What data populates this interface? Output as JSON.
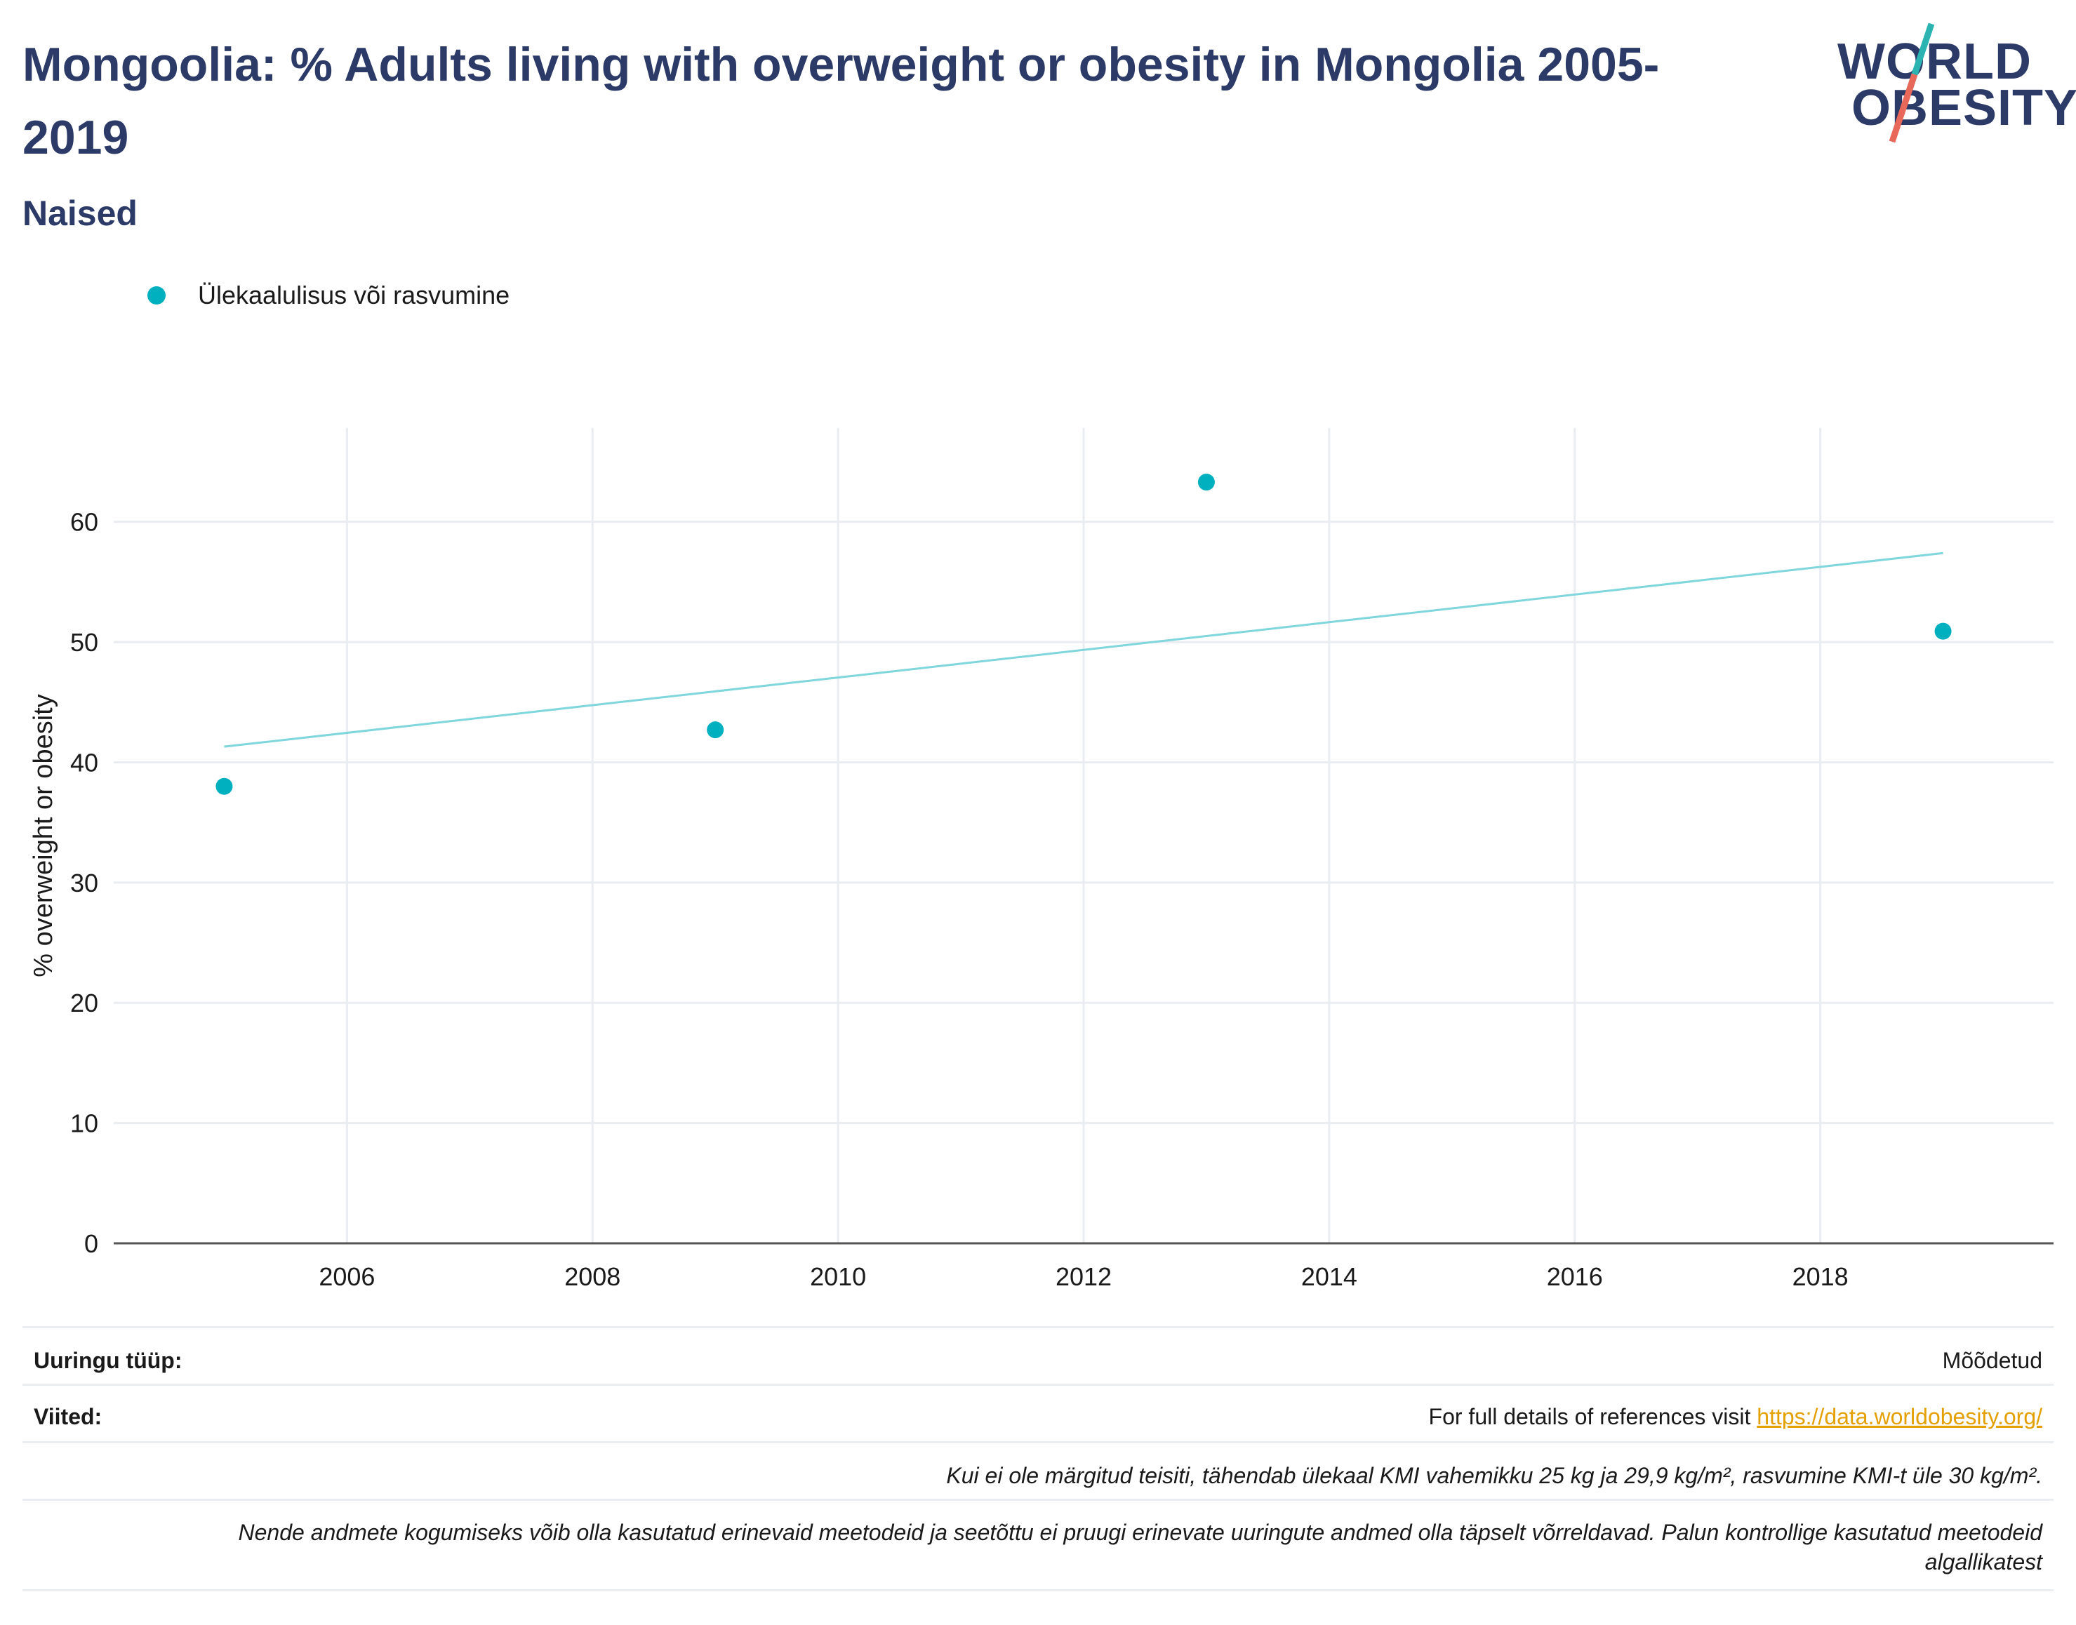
{
  "header": {
    "title": "Mongoolia: % Adults living with overweight or obesity in Mongolia 2005-2019",
    "subtitle": "Naised"
  },
  "logo": {
    "line1": "WORLD",
    "line2": "OBESITY",
    "accent_teal": "#2ab3b1",
    "accent_red": "#e8685a"
  },
  "legend": {
    "label": "Ülekaalulisus või rasvumine",
    "color": "#00b0be"
  },
  "chart_data": {
    "type": "scatter",
    "title": "",
    "xlabel": "",
    "ylabel": "% overweight or obesity",
    "xlim": [
      2004.1,
      2019.9
    ],
    "ylim": [
      0,
      67.8
    ],
    "xticks": [
      2006,
      2008,
      2010,
      2012,
      2014,
      2016,
      2018
    ],
    "yticks": [
      0,
      10,
      20,
      30,
      40,
      50,
      60
    ],
    "grid": true,
    "legend_position": "top-left",
    "series": [
      {
        "name": "Ülekaalulisus või rasvumine",
        "color": "#00b0be",
        "points": [
          {
            "x": 2005,
            "y": 38.0
          },
          {
            "x": 2009,
            "y": 42.7
          },
          {
            "x": 2013,
            "y": 63.3
          },
          {
            "x": 2019,
            "y": 50.9
          }
        ]
      }
    ],
    "trendline": {
      "color": "#7fd6dc",
      "points": [
        {
          "x": 2005,
          "y": 41.3
        },
        {
          "x": 2019,
          "y": 57.4
        }
      ]
    }
  },
  "footer": {
    "survey_label": "Uuringu tüüp:",
    "survey_value": "Mõõdetud",
    "refs_label": "Viited:",
    "refs_text": "For full details of references visit ",
    "refs_link": "https://data.worldobesity.org/",
    "note1": "Kui ei ole märgitud teisiti, tähendab ülekaal KMI vahemikku 25 kg ja 29,9 kg/m², rasvumine KMI-t üle 30 kg/m².",
    "note2_line1": "Nende andmete kogumiseks võib olla kasutatud erinevaid meetodeid ja seetõttu ei pruugi erinevate uuringute andmed olla täpselt võrreldavad. Palun kontrollige kasutatud meetodeid",
    "note2_line2": "algallikatest"
  }
}
